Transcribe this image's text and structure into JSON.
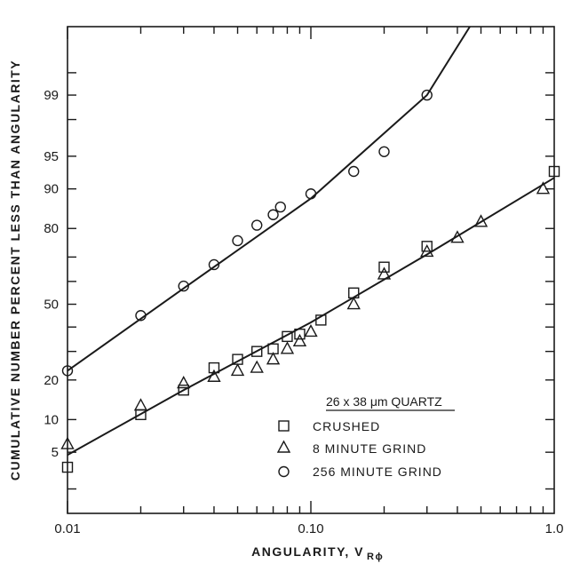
{
  "chart_data": {
    "type": "scatter",
    "x_scale": "log",
    "y_scale": "probability",
    "xlim": [
      0.01,
      1.0
    ],
    "ylim": [
      1,
      99.9
    ],
    "xlabel": "ANGULARITY, V",
    "xlabel_subscript": "Rϕ",
    "ylabel": "CUMULATIVE NUMBER PERCENT LESS THAN ANGULARITY",
    "x_ticks": [
      0.01,
      0.1,
      1.0
    ],
    "x_tick_labels": [
      "0.01",
      "0.10",
      "1.0"
    ],
    "y_ticks": [
      5,
      10,
      20,
      50,
      80,
      90,
      95,
      99
    ],
    "y_tick_labels": [
      "5",
      "10",
      "20",
      "50",
      "80",
      "90",
      "95",
      "99"
    ],
    "legend_title": "26 x 38 μm QUARTZ",
    "legend_position": "bottom-right",
    "series": [
      {
        "name": "CRUSHED",
        "marker": "square",
        "points": [
          [
            0.01,
            3.5
          ],
          [
            0.02,
            11
          ],
          [
            0.03,
            17
          ],
          [
            0.04,
            24
          ],
          [
            0.05,
            27
          ],
          [
            0.06,
            30
          ],
          [
            0.07,
            31
          ],
          [
            0.08,
            36
          ],
          [
            0.09,
            37
          ],
          [
            0.11,
            43
          ],
          [
            0.15,
            55
          ],
          [
            0.2,
            66
          ],
          [
            0.3,
            74
          ],
          [
            1.0,
            93
          ]
        ]
      },
      {
        "name": "8 MINUTE GRIND",
        "marker": "triangle",
        "points": [
          [
            0.01,
            6
          ],
          [
            0.02,
            13
          ],
          [
            0.03,
            19
          ],
          [
            0.04,
            21
          ],
          [
            0.05,
            23
          ],
          [
            0.06,
            24
          ],
          [
            0.07,
            27
          ],
          [
            0.08,
            31
          ],
          [
            0.09,
            34
          ],
          [
            0.1,
            38
          ],
          [
            0.15,
            50
          ],
          [
            0.2,
            63
          ],
          [
            0.3,
            72
          ],
          [
            0.4,
            77
          ],
          [
            0.5,
            82
          ],
          [
            0.9,
            90
          ]
        ]
      },
      {
        "name": "256 MINUTE GRIND",
        "marker": "circle",
        "points": [
          [
            0.01,
            23
          ],
          [
            0.02,
            45
          ],
          [
            0.03,
            58
          ],
          [
            0.04,
            67
          ],
          [
            0.05,
            76
          ],
          [
            0.06,
            81
          ],
          [
            0.07,
            84
          ],
          [
            0.075,
            86
          ],
          [
            0.1,
            89
          ],
          [
            0.15,
            93
          ],
          [
            0.2,
            95.5
          ],
          [
            0.3,
            99
          ]
        ]
      }
    ],
    "fit_lines": [
      {
        "for": "CRUSHED / 8 MINUTE GRIND",
        "points": [
          [
            0.01,
            4.7
          ],
          [
            0.03,
            17
          ],
          [
            0.1,
            42
          ],
          [
            0.3,
            71
          ],
          [
            1.0,
            92
          ]
        ]
      },
      {
        "for": "256 MINUTE GRIND",
        "points": [
          [
            0.01,
            23
          ],
          [
            0.03,
            57
          ],
          [
            0.1,
            88
          ],
          [
            0.3,
            99
          ],
          [
            0.45,
            99.9
          ]
        ]
      }
    ]
  }
}
